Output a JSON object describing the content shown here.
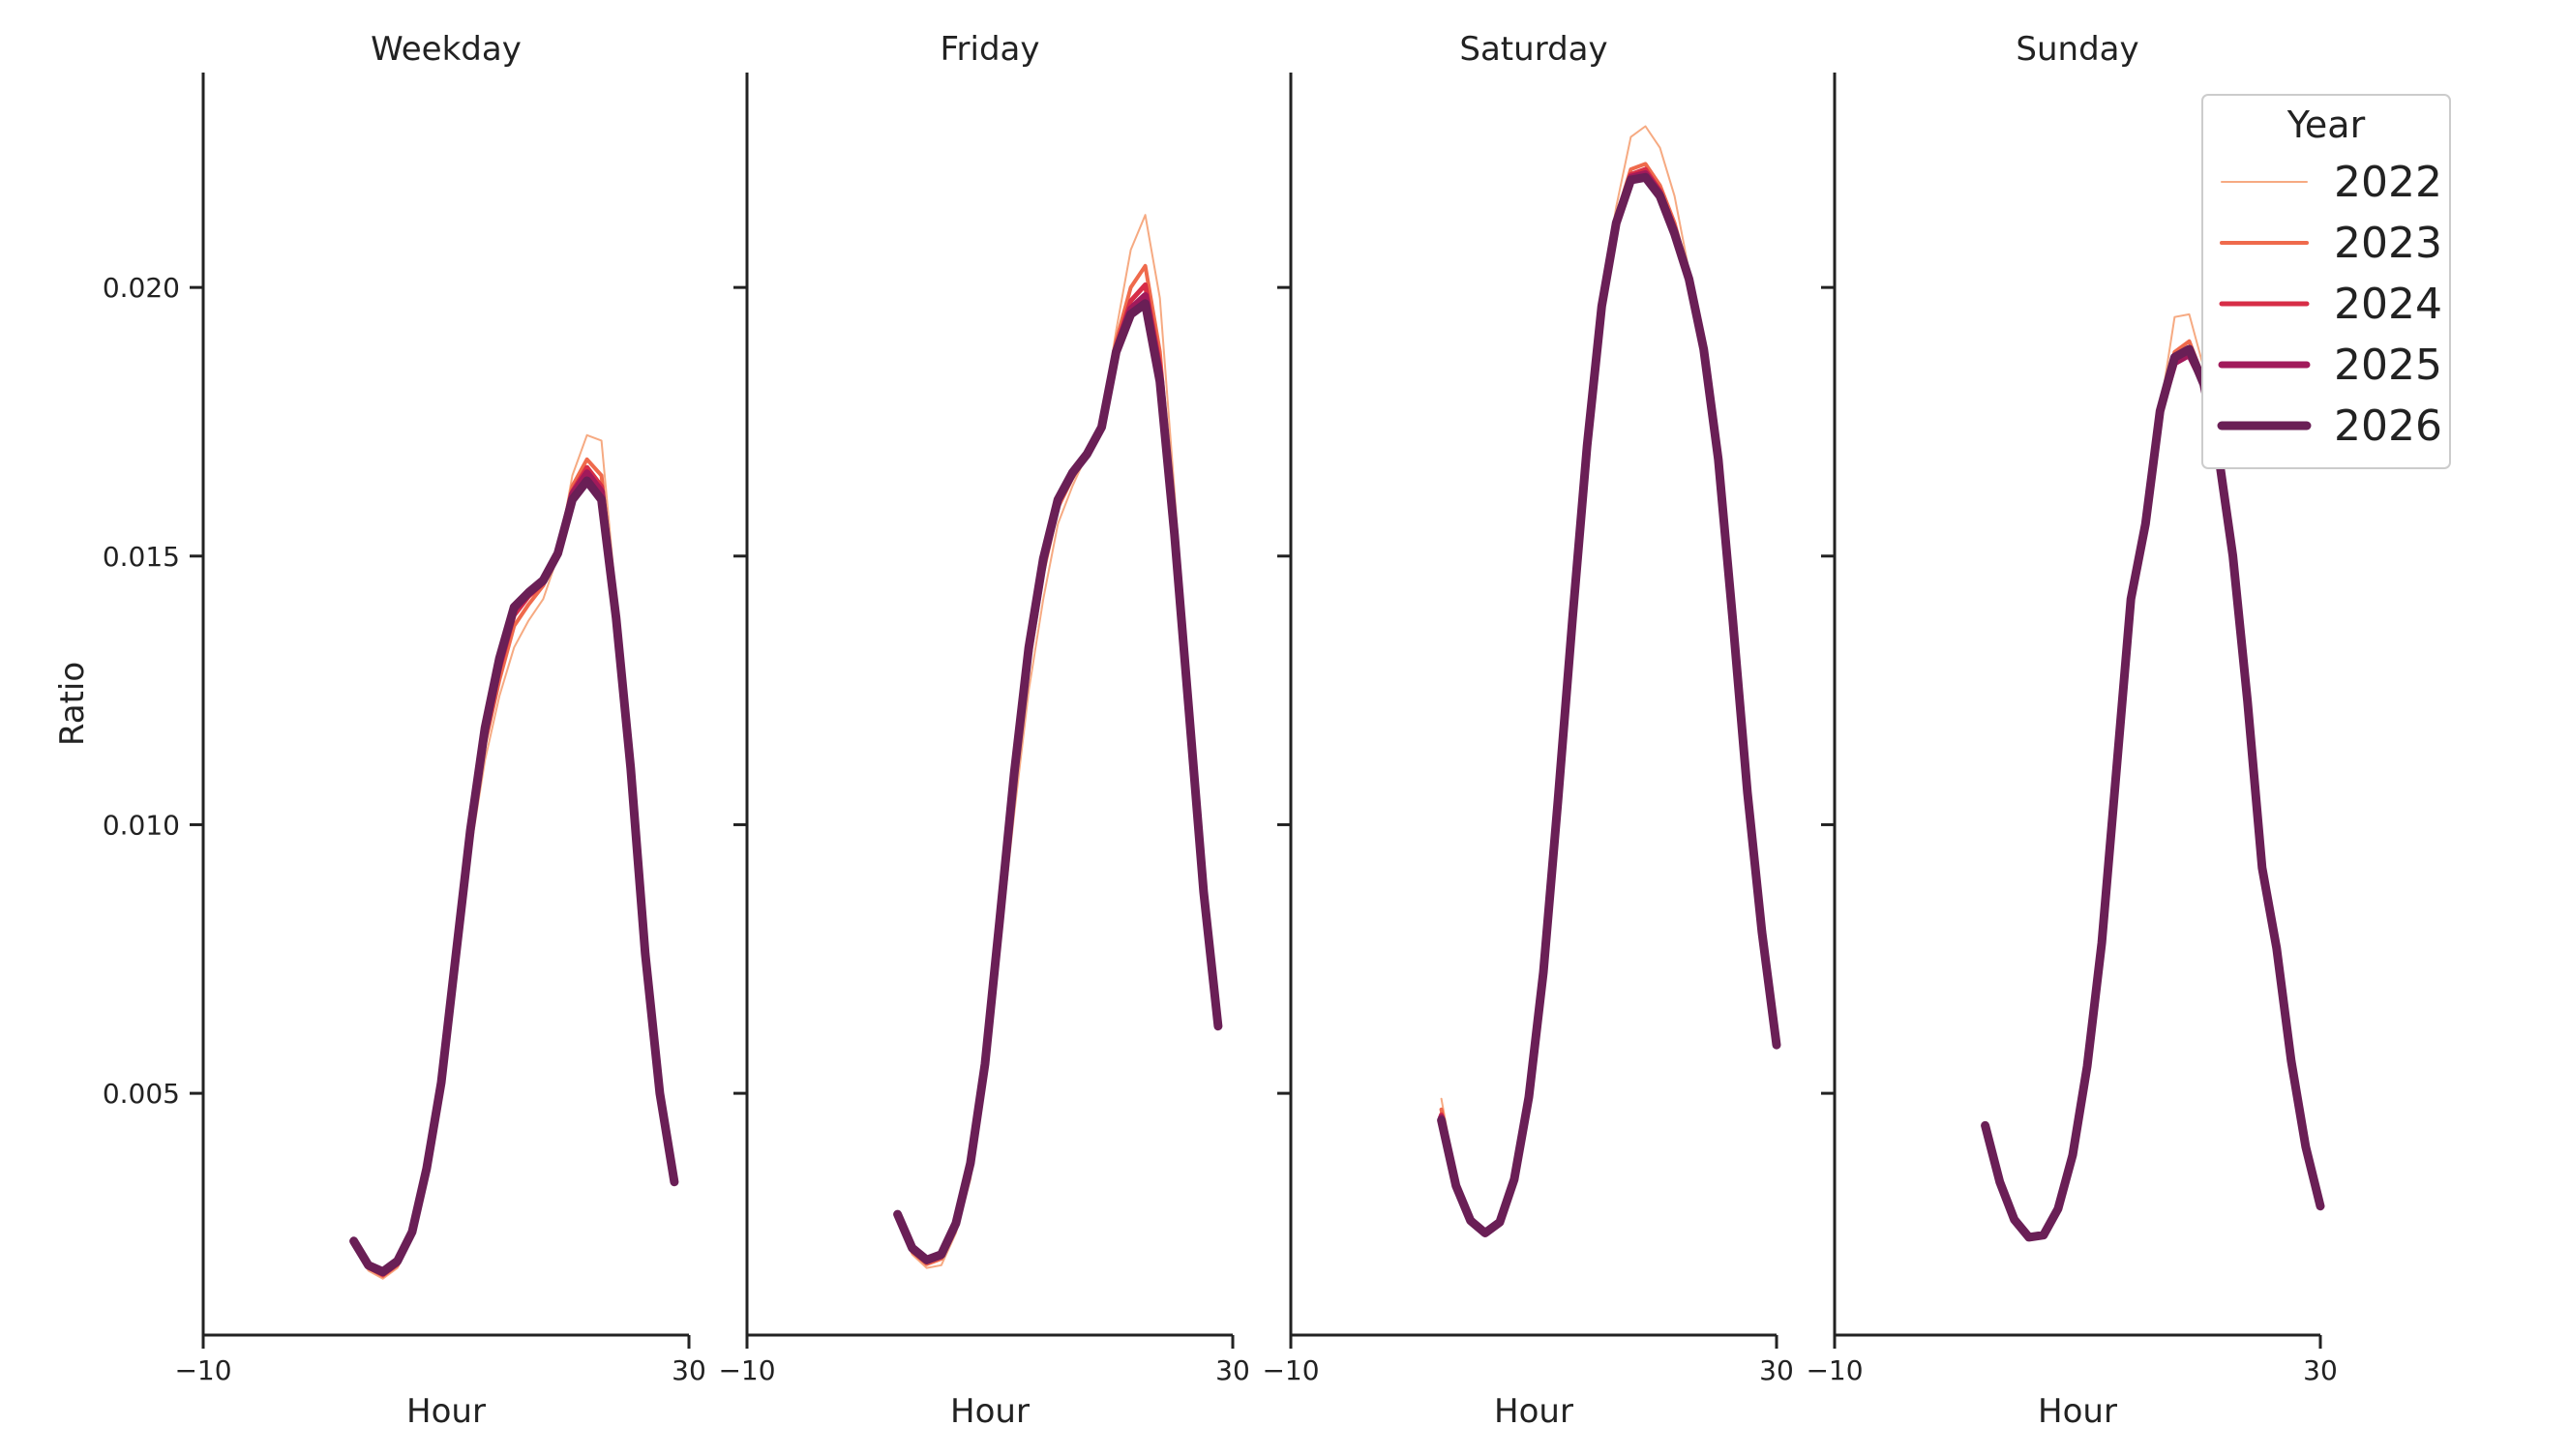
{
  "chart_data": {
    "type": "line",
    "facet_titles": [
      "Weekday",
      "Friday",
      "Saturday",
      "Sunday"
    ],
    "xlabel": "Hour",
    "ylabel": "Ratio",
    "xlim": [
      -10,
      30
    ],
    "ylim": [
      0.0005,
      0.024
    ],
    "x_ticks": [
      -10,
      30
    ],
    "x_tick_labels": [
      "−10",
      "30"
    ],
    "y_ticks": [
      0.005,
      0.01,
      0.015,
      0.02
    ],
    "y_tick_labels": [
      "0.005",
      "0.010",
      "0.015",
      "0.020"
    ],
    "legend": {
      "title": "Year",
      "position": "upper right",
      "items": [
        {
          "name": "2022",
          "color": "#f6aa82",
          "width": 2
        },
        {
          "name": "2023",
          "color": "#ef6a4c",
          "width": 4
        },
        {
          "name": "2024",
          "color": "#d72d47",
          "width": 5
        },
        {
          "name": "2025",
          "color": "#a11a5b",
          "width": 7
        },
        {
          "name": "2026",
          "color": "#6a1f56",
          "width": 9
        }
      ]
    },
    "panels": [
      {
        "title": "Weekday",
        "x": [
          0,
          1,
          2,
          3,
          4,
          5,
          6,
          7,
          8,
          9,
          10,
          11,
          12,
          13,
          14,
          15,
          16,
          17,
          18,
          19,
          20,
          21,
          22,
          23
        ],
        "series": [
          {
            "name": "2022",
            "values": [
              0.00215,
              0.0017,
              0.00155,
              0.00175,
              0.0023,
              0.0034,
              0.005,
              0.0072,
              0.0095,
              0.0112,
              0.0124,
              0.0133,
              0.0138,
              0.0142,
              0.015,
              0.0165,
              0.01725,
              0.01715,
              0.0142,
              0.0114,
              0.0077,
              0.005,
              0.0034,
              null
            ]
          },
          {
            "name": "2023",
            "values": [
              0.0022,
              0.00175,
              0.0016,
              0.0018,
              0.00235,
              0.0035,
              0.0051,
              0.0074,
              0.0097,
              0.0115,
              0.0127,
              0.0137,
              0.0141,
              0.01445,
              0.01505,
              0.0163,
              0.0168,
              0.0165,
              0.014,
              0.0112,
              0.0076,
              0.005,
              0.0034,
              null
            ]
          },
          {
            "name": "2024",
            "values": [
              0.0022,
              0.00178,
              0.00163,
              0.00183,
              0.00238,
              0.00355,
              0.00515,
              0.00745,
              0.0098,
              0.0116,
              0.0129,
              0.0139,
              0.01425,
              0.0145,
              0.01505,
              0.0162,
              0.01665,
              0.0163,
              0.01395,
              0.01115,
              0.0076,
              0.005,
              0.0034,
              null
            ]
          },
          {
            "name": "2025",
            "values": [
              0.00222,
              0.00178,
              0.00165,
              0.00185,
              0.0024,
              0.00357,
              0.00518,
              0.0075,
              0.00985,
              0.0117,
              0.013,
              0.014,
              0.0143,
              0.01452,
              0.01505,
              0.01615,
              0.01655,
              0.0162,
              0.0139,
              0.0111,
              0.0076,
              0.005,
              0.00338,
              null
            ]
          },
          {
            "name": "2026",
            "values": [
              0.00225,
              0.0018,
              0.00168,
              0.00188,
              0.00242,
              0.0036,
              0.0052,
              0.00755,
              0.0099,
              0.0118,
              0.0131,
              0.01405,
              0.01432,
              0.01455,
              0.01505,
              0.01605,
              0.0164,
              0.01605,
              0.01385,
              0.01105,
              0.0076,
              0.005,
              0.00335,
              null
            ]
          }
        ]
      },
      {
        "title": "Friday",
        "x": [
          0,
          1,
          2,
          3,
          4,
          5,
          6,
          7,
          8,
          9,
          10,
          11,
          12,
          13,
          14,
          15,
          16,
          17,
          18,
          19,
          20,
          21,
          22,
          23
        ],
        "series": [
          {
            "name": "2022",
            "values": [
              0.0027,
              0.002,
              0.00175,
              0.0018,
              0.0024,
              0.0034,
              0.0052,
              0.0077,
              0.0102,
              0.0125,
              0.0142,
              0.0156,
              0.0163,
              0.0169,
              0.0175,
              0.0192,
              0.0207,
              0.02135,
              0.0198,
              0.0162,
              0.0125,
              0.0089,
              0.00625,
              null
            ]
          },
          {
            "name": "2023",
            "values": [
              0.00272,
              0.00205,
              0.00182,
              0.00192,
              0.0025,
              0.0036,
              0.0054,
              0.008,
              0.0107,
              0.013,
              0.0147,
              0.0159,
              0.01645,
              0.0169,
              0.01745,
              0.019,
              0.02,
              0.0204,
              0.0188,
              0.0156,
              0.0122,
              0.0088,
              0.00625,
              null
            ]
          },
          {
            "name": "2024",
            "values": [
              0.00272,
              0.00208,
              0.00186,
              0.00196,
              0.00254,
              0.00365,
              0.00548,
              0.0081,
              0.01085,
              0.01315,
              0.01485,
              0.016,
              0.0165,
              0.0169,
              0.01742,
              0.0189,
              0.01975,
              0.02005,
              0.01855,
              0.0155,
              0.01215,
              0.00878,
              0.00625,
              null
            ]
          },
          {
            "name": "2025",
            "values": [
              0.00273,
              0.0021,
              0.00188,
              0.00198,
              0.00256,
              0.00368,
              0.00552,
              0.00815,
              0.0109,
              0.01322,
              0.0149,
              0.01603,
              0.01652,
              0.0169,
              0.0174,
              0.01885,
              0.0196,
              0.01985,
              0.0184,
              0.01545,
              0.01212,
              0.00877,
              0.00625,
              null
            ]
          },
          {
            "name": "2026",
            "values": [
              0.00275,
              0.00212,
              0.0019,
              0.002,
              0.00258,
              0.0037,
              0.00555,
              0.0082,
              0.01095,
              0.0133,
              0.01495,
              0.01605,
              0.01655,
              0.0169,
              0.0174,
              0.0188,
              0.0195,
              0.0197,
              0.01825,
              0.0154,
              0.0121,
              0.00875,
              0.00625,
              null
            ]
          }
        ]
      },
      {
        "title": "Saturday",
        "x": [
          0,
          1,
          2,
          3,
          4,
          5,
          6,
          7,
          8,
          9,
          10,
          11,
          12,
          13,
          14,
          15,
          16,
          17,
          18,
          19,
          20,
          21,
          22,
          23
        ],
        "series": [
          {
            "name": "2022",
            "values": [
              0.0049,
              0.0034,
              0.0027,
              0.0024,
              0.0026,
              0.0034,
              0.005,
              0.0074,
              0.0106,
              0.014,
              0.0172,
              0.0198,
              0.0215,
              0.0228,
              0.023,
              0.0226,
              0.0217,
              0.0203,
              0.0189,
              0.0168,
              0.0138,
              0.0106,
              0.008,
              0.0059
            ]
          },
          {
            "name": "2023",
            "values": [
              0.0047,
              0.00335,
              0.00265,
              0.0024,
              0.0026,
              0.0034,
              0.00495,
              0.0073,
              0.0105,
              0.0139,
              0.0171,
              0.0197,
              0.0213,
              0.0222,
              0.0223,
              0.0219,
              0.0212,
              0.0202,
              0.01885,
              0.0168,
              0.0138,
              0.0106,
              0.008,
              0.0059
            ]
          },
          {
            "name": "2024",
            "values": [
              0.0046,
              0.00332,
              0.00265,
              0.0024,
              0.0026,
              0.0034,
              0.00495,
              0.00728,
              0.01048,
              0.01388,
              0.01708,
              0.01968,
              0.02125,
              0.0221,
              0.0222,
              0.0218,
              0.0211,
              0.02018,
              0.01885,
              0.0168,
              0.0138,
              0.0106,
              0.008,
              0.0059
            ]
          },
          {
            "name": "2025",
            "values": [
              0.00455,
              0.0033,
              0.00264,
              0.0024,
              0.0026,
              0.0034,
              0.00494,
              0.00726,
              0.01046,
              0.01386,
              0.01706,
              0.01966,
              0.02122,
              0.02205,
              0.02212,
              0.02175,
              0.02106,
              0.02016,
              0.01885,
              0.0168,
              0.0138,
              0.0106,
              0.008,
              0.0059
            ]
          },
          {
            "name": "2026",
            "values": [
              0.0045,
              0.00328,
              0.00263,
              0.0024,
              0.0026,
              0.0034,
              0.00493,
              0.00725,
              0.01045,
              0.01385,
              0.01705,
              0.01965,
              0.0212,
              0.022,
              0.02205,
              0.0217,
              0.021,
              0.02015,
              0.01885,
              0.0168,
              0.0138,
              0.0106,
              0.008,
              0.0059
            ]
          }
        ]
      },
      {
        "title": "Sunday",
        "x": [
          0,
          1,
          2,
          3,
          4,
          5,
          6,
          7,
          8,
          9,
          10,
          11,
          12,
          13,
          14,
          15,
          16,
          17,
          18,
          19,
          20,
          21,
          22,
          23
        ],
        "series": [
          {
            "name": "2022",
            "values": [
              0.0044,
              0.00335,
              0.00265,
              0.00232,
              0.00236,
              0.00285,
              0.00385,
              0.0055,
              0.0078,
              0.011,
              0.0142,
              0.0156,
              0.0177,
              0.01945,
              0.0195,
              0.0185,
              0.017,
              0.015,
              0.0123,
              0.0092,
              0.0077,
              0.0056,
              0.004,
              0.00285
            ]
          },
          {
            "name": "2023",
            "values": [
              0.0044,
              0.00335,
              0.00265,
              0.00232,
              0.00236,
              0.00285,
              0.00385,
              0.0055,
              0.0078,
              0.011,
              0.0142,
              0.0156,
              0.0177,
              0.0188,
              0.019,
              0.0183,
              0.0169,
              0.015,
              0.0123,
              0.0092,
              0.0077,
              0.0056,
              0.004,
              0.0029
            ]
          },
          {
            "name": "2024",
            "values": [
              0.0044,
              0.00335,
              0.00265,
              0.00232,
              0.00236,
              0.00285,
              0.00385,
              0.0055,
              0.0078,
              0.011,
              0.0142,
              0.0156,
              0.0177,
              0.0186,
              0.0188,
              0.01825,
              0.0169,
              0.015,
              0.0123,
              0.0092,
              0.0077,
              0.0056,
              0.004,
              0.0029
            ]
          },
          {
            "name": "2025",
            "values": [
              0.0044,
              0.00335,
              0.00265,
              0.00232,
              0.00236,
              0.00285,
              0.00385,
              0.0055,
              0.0078,
              0.011,
              0.0142,
              0.0156,
              0.0177,
              0.0186,
              0.01875,
              0.0182,
              0.0169,
              0.015,
              0.0123,
              0.0092,
              0.0077,
              0.0056,
              0.004,
              0.0029
            ]
          },
          {
            "name": "2026",
            "values": [
              0.0044,
              0.00335,
              0.00265,
              0.00232,
              0.00236,
              0.00285,
              0.00385,
              0.0055,
              0.0078,
              0.011,
              0.0142,
              0.0156,
              0.0177,
              0.0187,
              0.01885,
              0.0182,
              0.0169,
              0.015,
              0.0123,
              0.0092,
              0.0077,
              0.0056,
              0.004,
              0.0029
            ]
          }
        ]
      }
    ]
  }
}
